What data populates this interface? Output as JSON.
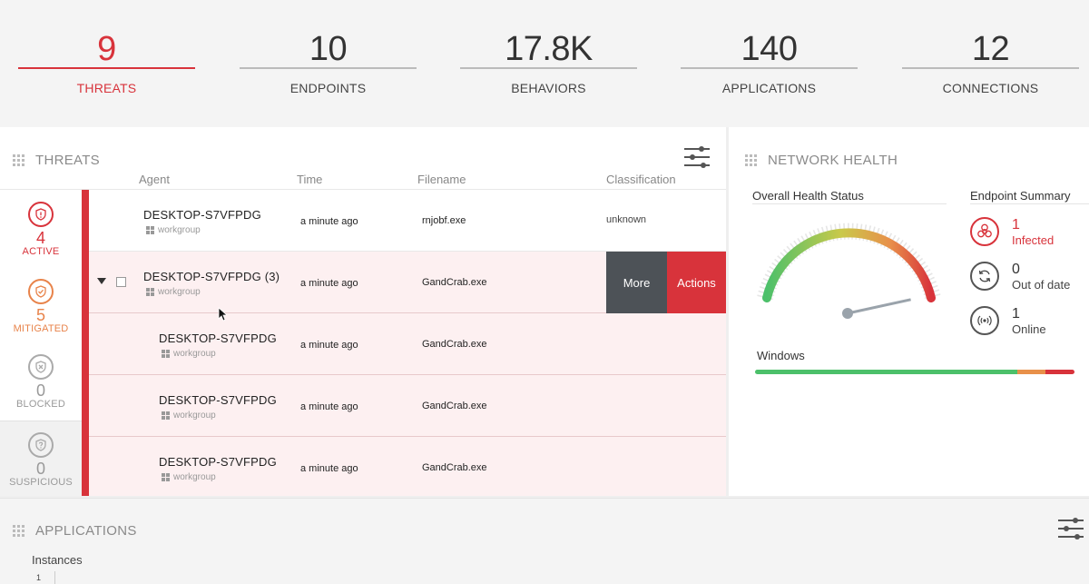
{
  "stats": [
    {
      "value": "9",
      "label": "THREATS",
      "active": true
    },
    {
      "value": "10",
      "label": "ENDPOINTS",
      "active": false
    },
    {
      "value": "17.8K",
      "label": "BEHAVIORS",
      "active": false
    },
    {
      "value": "140",
      "label": "APPLICATIONS",
      "active": false
    },
    {
      "value": "12",
      "label": "CONNECTIONS",
      "active": false
    }
  ],
  "threats": {
    "title": "THREATS",
    "columns": {
      "agent": "Agent",
      "time": "Time",
      "filename": "Filename",
      "classification": "Classification"
    },
    "categories": {
      "active": {
        "count": "4",
        "label": "ACTIVE"
      },
      "mitigated": {
        "count": "5",
        "label": "MITIGATED"
      },
      "blocked": {
        "count": "0",
        "label": "BLOCKED"
      },
      "suspicious": {
        "count": "0",
        "label": "SUSPICIOUS"
      }
    },
    "rows": [
      {
        "agent": "DESKTOP-S7VFPDG",
        "group": "workgroup",
        "time": "a minute ago",
        "filename": "rnjobf.exe",
        "classification": "unknown"
      },
      {
        "agent": "DESKTOP-S7VFPDG (3)",
        "group": "workgroup",
        "time": "a minute ago",
        "filename": "GandCrab.exe",
        "classification": ""
      },
      {
        "agent": "DESKTOP-S7VFPDG",
        "group": "workgroup",
        "time": "a minute ago",
        "filename": "GandCrab.exe",
        "classification": ""
      },
      {
        "agent": "DESKTOP-S7VFPDG",
        "group": "workgroup",
        "time": "a minute ago",
        "filename": "GandCrab.exe",
        "classification": ""
      },
      {
        "agent": "DESKTOP-S7VFPDG",
        "group": "workgroup",
        "time": "a minute ago",
        "filename": "GandCrab.exe",
        "classification": ""
      }
    ],
    "more_label": "More",
    "actions_label": "Actions"
  },
  "network": {
    "title": "NETWORK HEALTH",
    "overall_label": "Overall Health Status",
    "summary_label": "Endpoint Summary",
    "gauge_value": 0.85,
    "endpoints": {
      "infected": {
        "count": "1",
        "label": "Infected"
      },
      "outofdate": {
        "count": "0",
        "label": "Out of date"
      },
      "online": {
        "count": "1",
        "label": "Online"
      }
    },
    "windows_label": "Windows",
    "windows_bar": {
      "green": 0.82,
      "orange": 0.09,
      "red": 0.09
    },
    "colors": {
      "green": "#4cc06a",
      "orange": "#e8904a",
      "red": "#d8333b"
    }
  },
  "apps": {
    "title": "APPLICATIONS",
    "instances_label": "Instances",
    "axis_tick": "1"
  }
}
